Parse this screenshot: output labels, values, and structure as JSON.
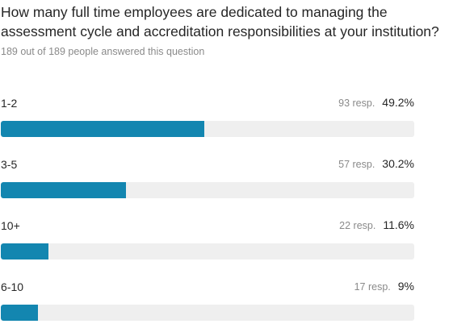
{
  "question": "How many full time employees are dedicated to managing the assessment cycle and accreditation responsibilities at your institution?",
  "answered_text": "189 out of 189 people answered this question",
  "colors": {
    "bar": "#1386b0",
    "track": "#efefef"
  },
  "chart_data": {
    "type": "bar",
    "orientation": "horizontal",
    "categories": [
      "1-2",
      "3-5",
      "10+",
      "6-10"
    ],
    "series": [
      {
        "values": [
          49.2,
          30.2,
          11.6,
          9
        ]
      }
    ],
    "counts": [
      "93 resp.",
      "57 resp.",
      "22 resp.",
      "17 resp."
    ],
    "percent_labels": [
      "49.2%",
      "30.2%",
      "11.6%",
      "9%"
    ],
    "xlim": [
      0,
      100
    ],
    "grid": false
  }
}
